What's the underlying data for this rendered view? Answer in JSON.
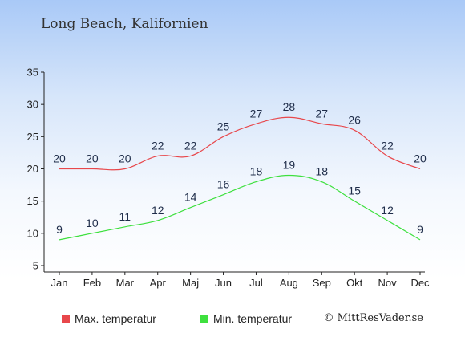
{
  "title": "Long Beach, Kalifornien",
  "credit": "© MittResVader.se",
  "chart_data": {
    "type": "line",
    "title": "Long Beach, Kalifornien",
    "xlabel": "",
    "ylabel": "",
    "categories": [
      "Jan",
      "Feb",
      "Mar",
      "Apr",
      "Maj",
      "Jun",
      "Jul",
      "Aug",
      "Sep",
      "Okt",
      "Nov",
      "Dec"
    ],
    "ylim": [
      5,
      35
    ],
    "yticks": [
      5,
      10,
      15,
      20,
      25,
      30,
      35
    ],
    "grid": false,
    "legend_position": "bottom",
    "series": [
      {
        "name": "Max. temperatur",
        "color": "#e8474b",
        "values": [
          20,
          20,
          20,
          22,
          22,
          25,
          27,
          28,
          27,
          26,
          22,
          20
        ],
        "labels": [
          "20",
          "20",
          "20",
          "22",
          "22",
          "25",
          "27",
          "28",
          "27",
          "26",
          "22",
          "20"
        ]
      },
      {
        "name": "Min. temperatur",
        "color": "#3ee03e",
        "values": [
          9,
          10,
          11,
          12,
          14,
          16,
          18,
          19,
          18,
          15,
          12,
          9
        ],
        "labels": [
          "9",
          "10",
          "11",
          "12",
          "14",
          "16",
          "18",
          "19",
          "18",
          "15",
          "12",
          "9"
        ]
      }
    ]
  }
}
